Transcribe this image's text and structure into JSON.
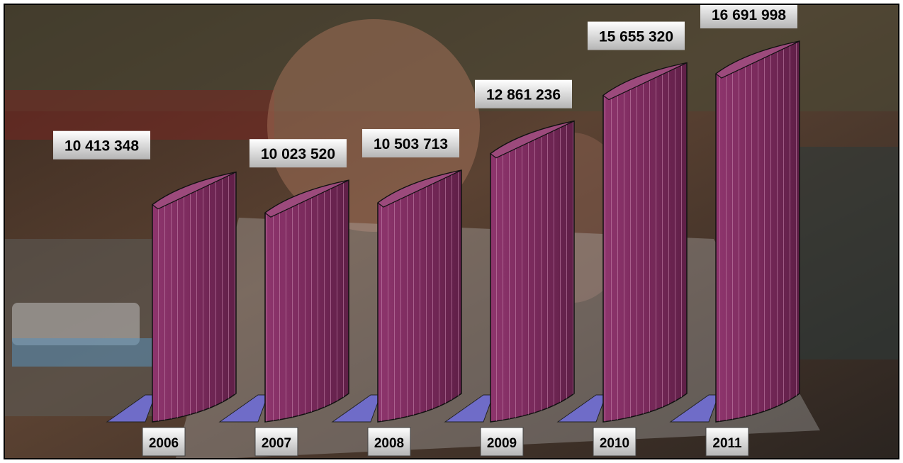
{
  "chart_data": {
    "type": "bar",
    "categories": [
      "2006",
      "2007",
      "2008",
      "2009",
      "2010",
      "2011"
    ],
    "values": [
      10413348,
      10023520,
      10503713,
      12861236,
      15655320,
      16691998
    ],
    "value_labels": [
      "10 413 348",
      "10 023 520",
      "10 503 713",
      "12 861 236",
      "15 655 320",
      "16 691 998"
    ],
    "bar_color": "#7a2a5c",
    "floor_color": "#6f6cc8",
    "label_box_color": "#e6e6e6",
    "title": "",
    "xlabel": "",
    "ylabel": "",
    "grid": false,
    "legend": "none",
    "background": "photo"
  }
}
